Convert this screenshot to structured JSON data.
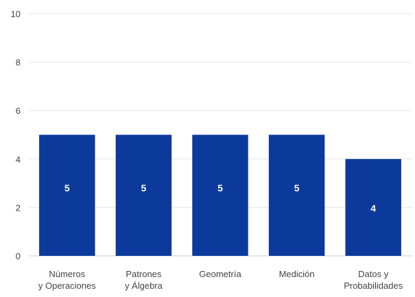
{
  "chart_data": {
    "type": "bar",
    "categories": [
      [
        "Números",
        "y Operaciones"
      ],
      [
        "Patrones",
        "y Álgebra"
      ],
      [
        "Geometría"
      ],
      [
        "Medición"
      ],
      [
        "Datos y",
        "Probabilidades"
      ]
    ],
    "values": [
      5,
      5,
      5,
      5,
      4
    ],
    "data_labels": [
      "5",
      "5",
      "5",
      "5",
      "4"
    ],
    "ylim": [
      0,
      10
    ],
    "yticks": [
      0,
      2,
      4,
      6,
      8,
      10
    ],
    "title": "",
    "xlabel": "",
    "ylabel": "",
    "grid": true,
    "legend": "none",
    "bar_color": "#0b3a9c",
    "value_label_color": "#ffffff",
    "gridline_color": "#e6e6e6",
    "text_color": "#444444"
  }
}
